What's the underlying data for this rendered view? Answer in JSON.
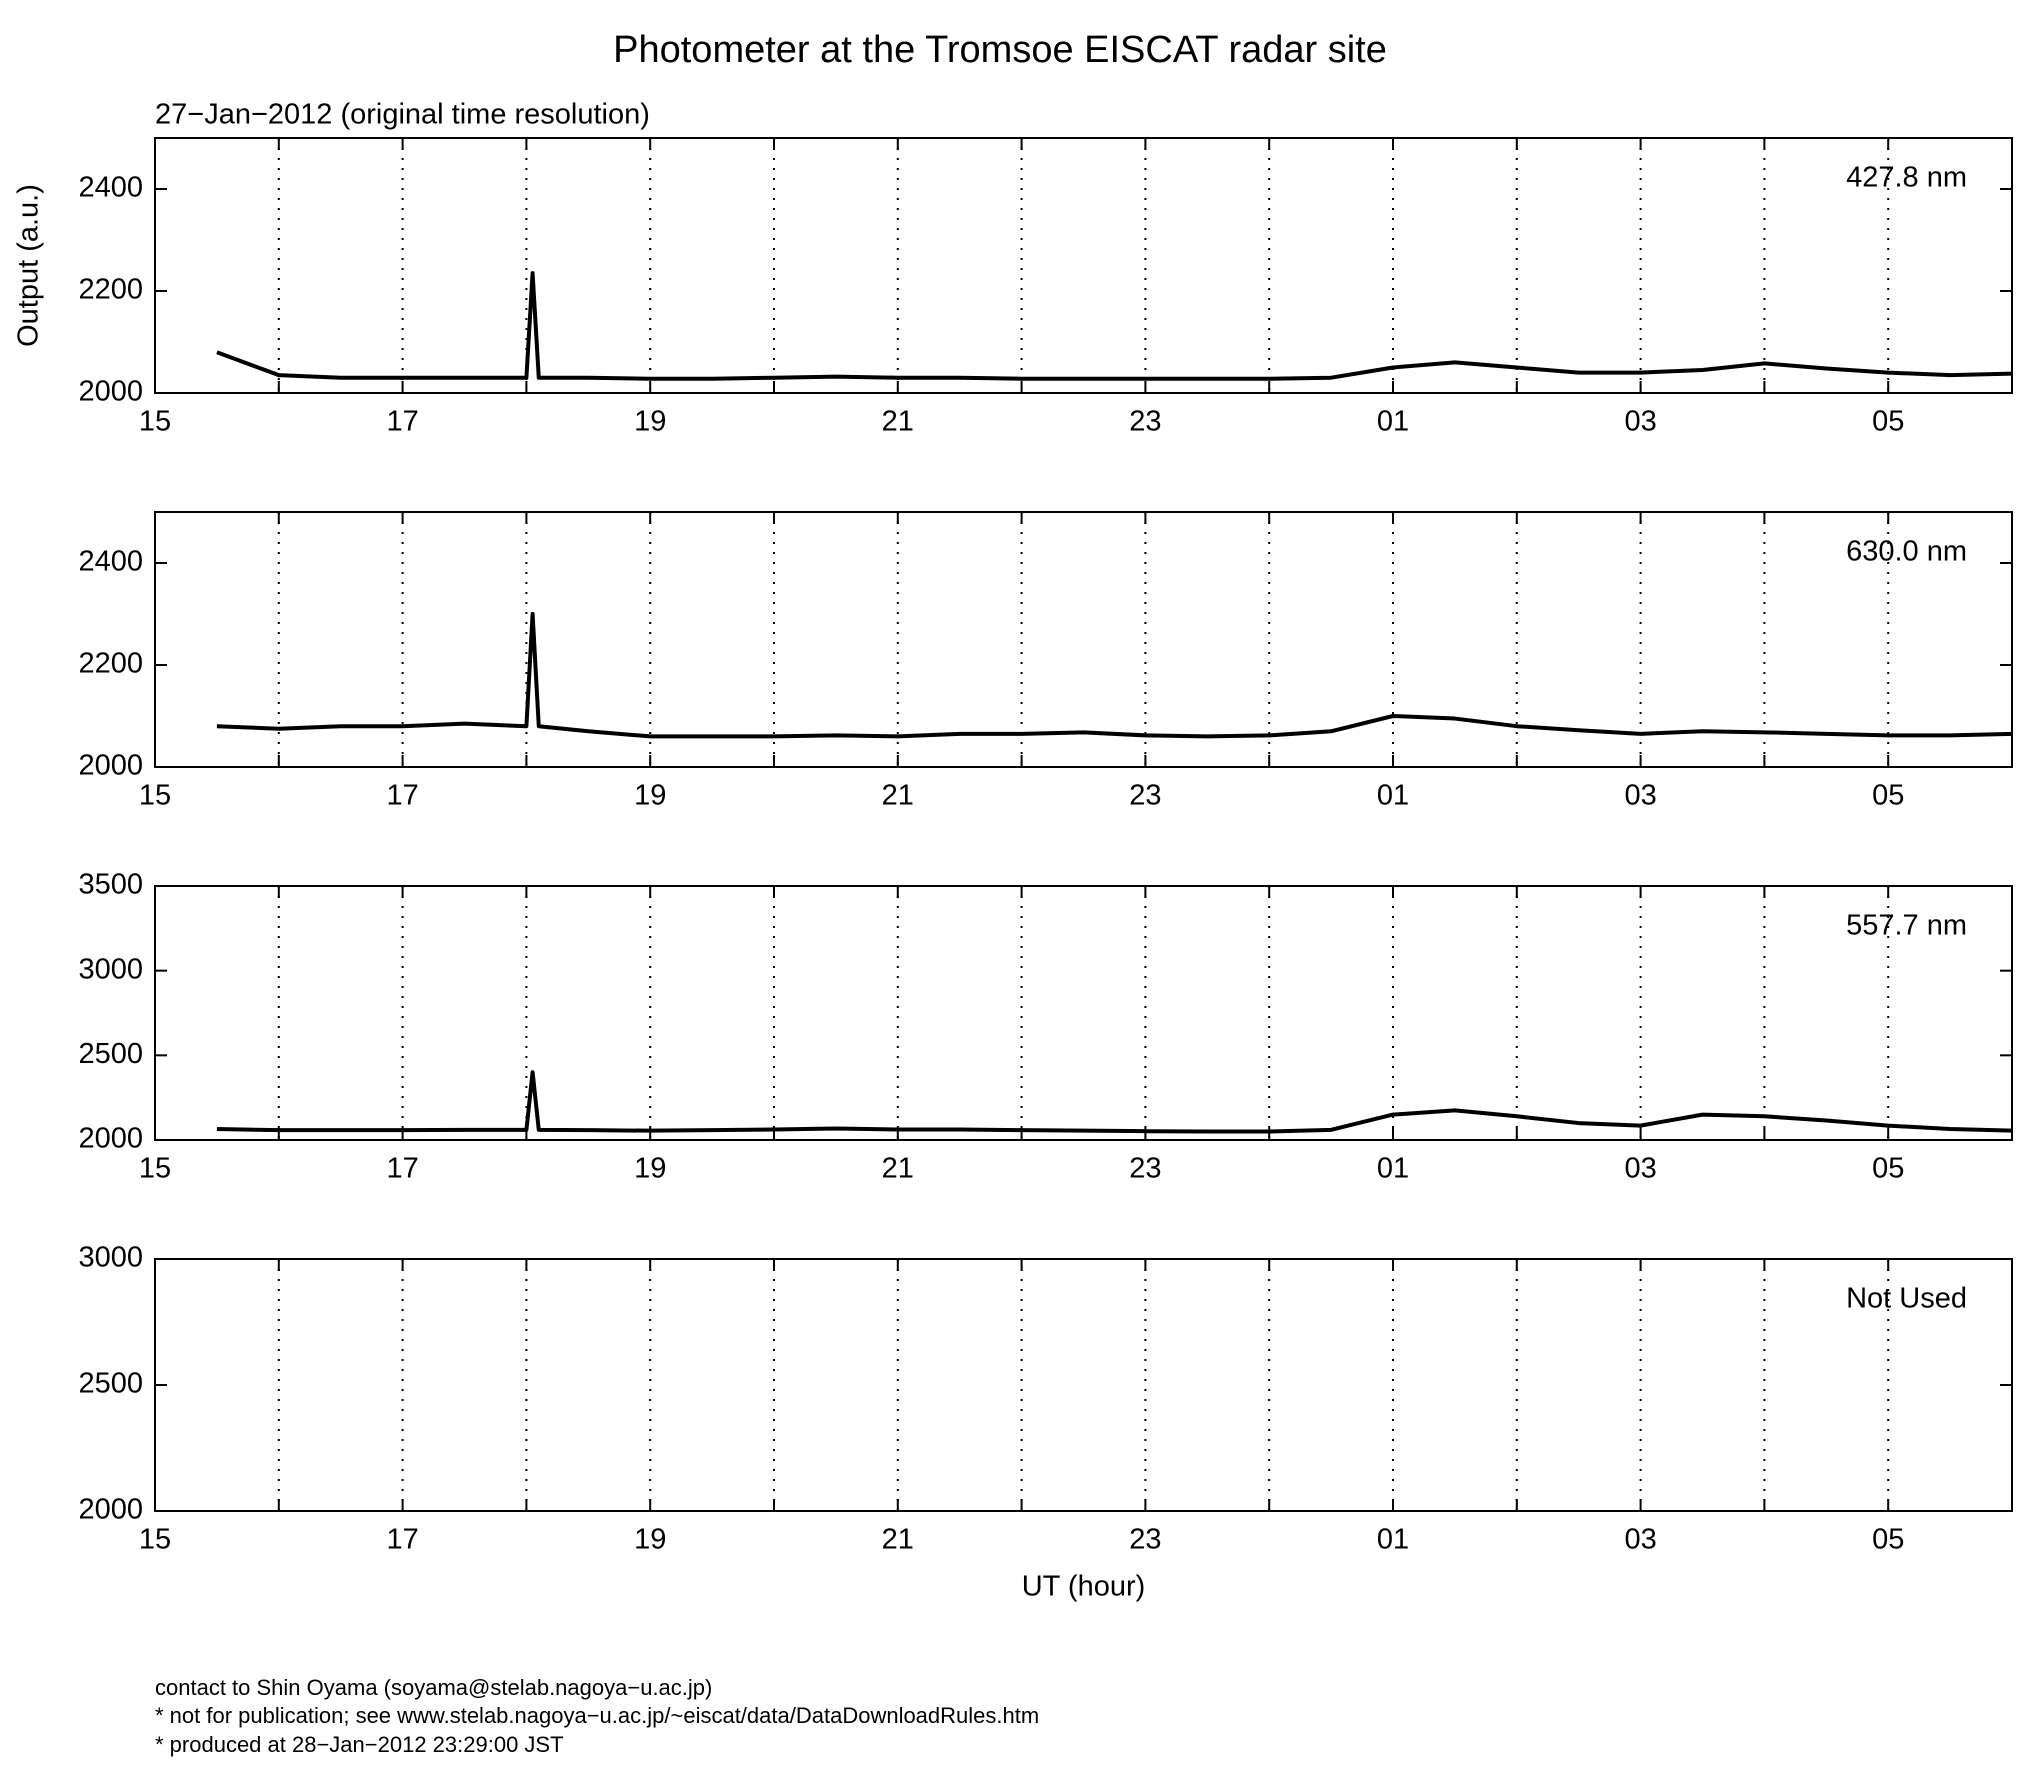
{
  "title": "Photometer at the Tromsoe EISCAT radar site",
  "subtitle": "27−Jan−2012 (original time resolution)",
  "notes": [
    "contact to Shin Oyama (soyama@stelab.nagoya−u.ac.jp)",
    "* not for publication; see www.stelab.nagoya−u.ac.jp/~eiscat/data/DataDownloadRules.htm",
    "* produced at 28−Jan−2012 23:29:00 JST"
  ],
  "chart_data": [
    {
      "type": "line",
      "label": "427.8 nm",
      "ylabel": "Output (a.u.)",
      "xlim": [
        15,
        30
      ],
      "xticks": [
        15,
        17,
        19,
        21,
        23,
        {
          "value": 25,
          "label": "01"
        },
        {
          "value": 27,
          "label": "03"
        },
        {
          "value": 29,
          "label": "05"
        }
      ],
      "xminor_ticks": [
        16,
        18,
        20,
        22,
        24,
        26,
        28
      ],
      "ylim": [
        2000,
        2500
      ],
      "yticks": [
        2000,
        2200,
        2400
      ],
      "grid": true,
      "series": [
        {
          "name": "427.8 nm",
          "color": "#000000",
          "x": [
            15.5,
            16,
            16.5,
            17,
            17.5,
            18,
            18.05,
            18.1,
            18.5,
            19,
            19.5,
            20,
            20.5,
            21,
            21.5,
            22,
            22.5,
            23,
            23.5,
            24,
            24.5,
            25,
            25.5,
            26,
            26.5,
            27,
            27.5,
            28,
            28.5,
            29,
            29.5,
            30
          ],
          "values": [
            2080,
            2035,
            2030,
            2030,
            2030,
            2030,
            2235,
            2030,
            2030,
            2028,
            2028,
            2030,
            2032,
            2030,
            2030,
            2028,
            2028,
            2028,
            2028,
            2028,
            2030,
            2050,
            2060,
            2050,
            2040,
            2040,
            2045,
            2058,
            2048,
            2040,
            2035,
            2038
          ]
        }
      ]
    },
    {
      "type": "line",
      "label": "630.0 nm",
      "xlim": [
        15,
        30
      ],
      "xticks": [
        15,
        17,
        19,
        21,
        23,
        {
          "value": 25,
          "label": "01"
        },
        {
          "value": 27,
          "label": "03"
        },
        {
          "value": 29,
          "label": "05"
        }
      ],
      "xminor_ticks": [
        16,
        18,
        20,
        22,
        24,
        26,
        28
      ],
      "ylim": [
        2000,
        2500
      ],
      "yticks": [
        2000,
        2200,
        2400
      ],
      "grid": true,
      "series": [
        {
          "name": "630.0 nm",
          "color": "#000000",
          "x": [
            15.5,
            16,
            16.5,
            17,
            17.5,
            18,
            18.05,
            18.1,
            18.5,
            19,
            19.5,
            20,
            20.5,
            21,
            21.5,
            22,
            22.5,
            23,
            23.5,
            24,
            24.5,
            25,
            25.5,
            26,
            26.5,
            27,
            27.5,
            28,
            28.5,
            29,
            29.5,
            30
          ],
          "values": [
            2080,
            2075,
            2080,
            2080,
            2085,
            2080,
            2300,
            2080,
            2070,
            2060,
            2060,
            2060,
            2062,
            2060,
            2065,
            2065,
            2068,
            2062,
            2060,
            2062,
            2070,
            2100,
            2095,
            2080,
            2072,
            2065,
            2070,
            2068,
            2065,
            2062,
            2062,
            2065
          ]
        }
      ]
    },
    {
      "type": "line",
      "label": "557.7 nm",
      "xlim": [
        15,
        30
      ],
      "xticks": [
        15,
        17,
        19,
        21,
        23,
        {
          "value": 25,
          "label": "01"
        },
        {
          "value": 27,
          "label": "03"
        },
        {
          "value": 29,
          "label": "05"
        }
      ],
      "xminor_ticks": [
        16,
        18,
        20,
        22,
        24,
        26,
        28
      ],
      "ylim": [
        2000,
        3500
      ],
      "yticks": [
        2000,
        2500,
        3000,
        3500
      ],
      "grid": true,
      "series": [
        {
          "name": "557.7 nm",
          "color": "#000000",
          "x": [
            15.5,
            16,
            16.5,
            17,
            17.5,
            18,
            18.05,
            18.1,
            18.5,
            19,
            19.5,
            20,
            20.5,
            21,
            21.5,
            22,
            22.5,
            23,
            23.5,
            24,
            24.5,
            25,
            25.5,
            26,
            26.5,
            27,
            27.5,
            28,
            28.5,
            29,
            29.5,
            30
          ],
          "values": [
            2065,
            2058,
            2058,
            2058,
            2060,
            2060,
            2400,
            2060,
            2058,
            2055,
            2058,
            2062,
            2068,
            2062,
            2062,
            2058,
            2055,
            2052,
            2050,
            2050,
            2060,
            2150,
            2175,
            2140,
            2100,
            2085,
            2150,
            2140,
            2115,
            2085,
            2065,
            2055
          ]
        }
      ]
    },
    {
      "type": "line",
      "label": "Not Used",
      "xlabel": "UT (hour)",
      "xlim": [
        15,
        30
      ],
      "xticks": [
        15,
        17,
        19,
        21,
        23,
        {
          "value": 25,
          "label": "01"
        },
        {
          "value": 27,
          "label": "03"
        },
        {
          "value": 29,
          "label": "05"
        }
      ],
      "xminor_ticks": [
        16,
        18,
        20,
        22,
        24,
        26,
        28
      ],
      "ylim": [
        2000,
        3000
      ],
      "yticks": [
        2000,
        2500,
        3000
      ],
      "grid": true,
      "series": []
    }
  ]
}
